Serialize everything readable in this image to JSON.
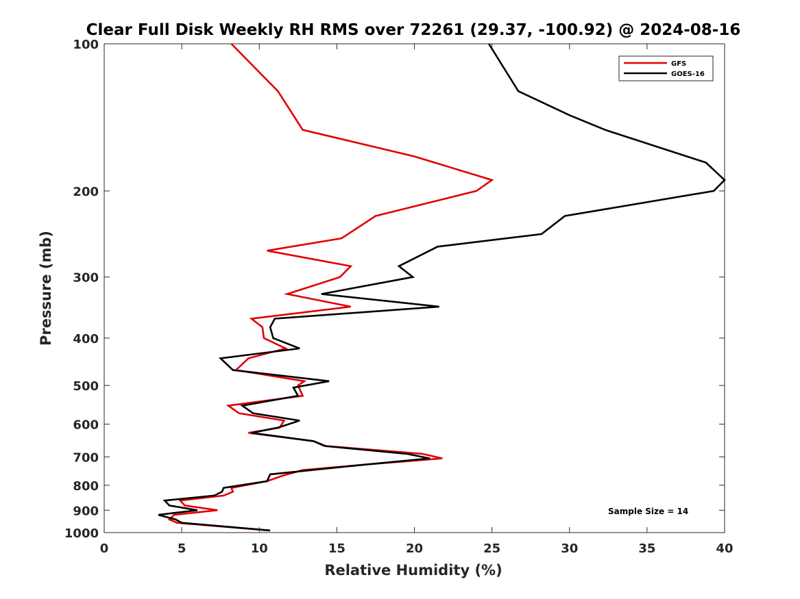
{
  "chart_data": {
    "type": "line",
    "title": "Clear Full Disk Weekly RH RMS over 72261 (29.37, -100.92) @ 2024-08-16",
    "xlabel": "Relative Humidity (%)",
    "ylabel": "Pressure (mb)",
    "xlim": [
      0,
      40
    ],
    "ylim": [
      100,
      1000
    ],
    "y_scale": "log",
    "y_reversed": true,
    "xticks": [
      0,
      5,
      10,
      15,
      20,
      25,
      30,
      35,
      40
    ],
    "yticks": [
      100,
      200,
      300,
      400,
      500,
      600,
      700,
      800,
      900,
      1000
    ],
    "grid": false,
    "legend_position": "top-right",
    "annotation": "Sample Size = 14",
    "series": [
      {
        "name": "GFS",
        "color": "#e00000",
        "points": [
          [
            8.2,
            100
          ],
          [
            11.2,
            125
          ],
          [
            12.8,
            150
          ],
          [
            20.0,
            170
          ],
          [
            25.0,
            190
          ],
          [
            24.0,
            200
          ],
          [
            17.5,
            225
          ],
          [
            15.3,
            250
          ],
          [
            10.5,
            265
          ],
          [
            15.9,
            285
          ],
          [
            15.2,
            300
          ],
          [
            11.8,
            325
          ],
          [
            15.9,
            345
          ],
          [
            9.5,
            365
          ],
          [
            10.2,
            380
          ],
          [
            10.3,
            400
          ],
          [
            11.7,
            420
          ],
          [
            9.3,
            440
          ],
          [
            8.5,
            465
          ],
          [
            12.9,
            490
          ],
          [
            12.5,
            500
          ],
          [
            12.8,
            525
          ],
          [
            8.0,
            550
          ],
          [
            8.7,
            570
          ],
          [
            11.6,
            590
          ],
          [
            11.3,
            610
          ],
          [
            9.3,
            625
          ],
          [
            13.5,
            650
          ],
          [
            14.3,
            665
          ],
          [
            20.5,
            690
          ],
          [
            21.8,
            705
          ],
          [
            17.0,
            725
          ],
          [
            12.8,
            745
          ],
          [
            11.5,
            765
          ],
          [
            10.5,
            785
          ],
          [
            8.2,
            810
          ],
          [
            8.3,
            825
          ],
          [
            7.7,
            840
          ],
          [
            4.9,
            860
          ],
          [
            5.2,
            880
          ],
          [
            7.3,
            900
          ],
          [
            4.5,
            920
          ],
          [
            4.2,
            940
          ],
          [
            4.7,
            955
          ],
          [
            10.7,
            990
          ]
        ]
      },
      {
        "name": "GOES-16",
        "color": "#000000",
        "points": [
          [
            24.8,
            100
          ],
          [
            26.7,
            125
          ],
          [
            30.0,
            140
          ],
          [
            32.3,
            150
          ],
          [
            38.8,
            175
          ],
          [
            40.0,
            190
          ],
          [
            39.3,
            200
          ],
          [
            29.7,
            225
          ],
          [
            28.2,
            245
          ],
          [
            21.5,
            260
          ],
          [
            19.0,
            285
          ],
          [
            19.9,
            300
          ],
          [
            14.0,
            325
          ],
          [
            21.6,
            345
          ],
          [
            11.0,
            365
          ],
          [
            10.7,
            380
          ],
          [
            10.9,
            400
          ],
          [
            12.6,
            420
          ],
          [
            7.5,
            440
          ],
          [
            8.3,
            465
          ],
          [
            14.5,
            490
          ],
          [
            12.2,
            505
          ],
          [
            12.5,
            525
          ],
          [
            8.9,
            550
          ],
          [
            9.6,
            570
          ],
          [
            12.6,
            590
          ],
          [
            11.2,
            610
          ],
          [
            9.5,
            625
          ],
          [
            13.5,
            650
          ],
          [
            14.2,
            665
          ],
          [
            19.5,
            690
          ],
          [
            21.0,
            705
          ],
          [
            17.0,
            725
          ],
          [
            10.7,
            760
          ],
          [
            10.5,
            785
          ],
          [
            7.7,
            810
          ],
          [
            7.6,
            825
          ],
          [
            7.1,
            840
          ],
          [
            3.9,
            860
          ],
          [
            4.2,
            880
          ],
          [
            6.0,
            900
          ],
          [
            3.5,
            920
          ],
          [
            4.6,
            940
          ],
          [
            5.0,
            955
          ],
          [
            10.7,
            990
          ]
        ]
      }
    ]
  }
}
